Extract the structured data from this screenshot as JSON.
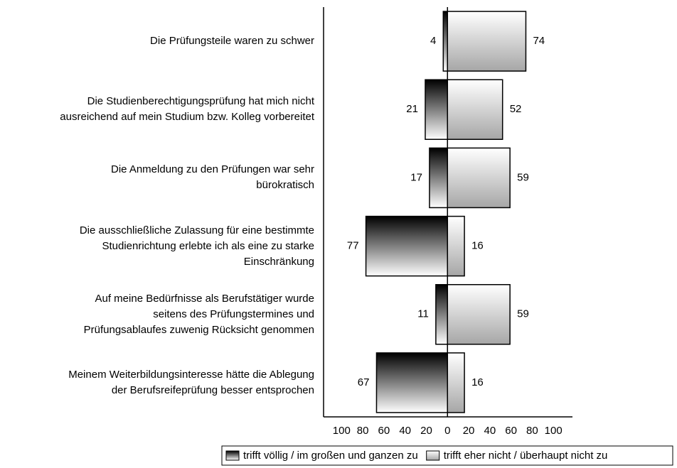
{
  "chart_data": {
    "type": "diverging-bar",
    "categories": [
      "Die Prüfungsteile waren zu schwer",
      "Die Studienberechtigungsprüfung hat mich nicht\nausreichend auf mein Studium bzw. Kolleg vorbereitet",
      "Die Anmeldung zu den Prüfungen war sehr\nbürokratisch",
      "Die ausschließliche Zulassung für eine bestimmte\nStudienrichtung erlebte ich als eine zu starke\nEinschränkung",
      "Auf meine Bedürfnisse als Berufstätiger wurde\nseitens des Prüfungstermines und\nPrüfungsablaufes zuwenig Rücksicht genommen",
      "Meinem Weiterbildungsinteresse hätte die Ablegung\nder Berufsreifeprüfung besser entsprochen"
    ],
    "series": [
      {
        "name": "trifft völlig / im großen und ganzen zu",
        "color": "#000000",
        "values": [
          -4,
          -21,
          -17,
          -77,
          -11,
          -67
        ],
        "value_labels": [
          "4",
          "21",
          "17",
          "77",
          "11",
          "67"
        ]
      },
      {
        "name": "trifft eher nicht / überhaupt nicht zu",
        "color": "#a6a6a6",
        "values": [
          74,
          52,
          59,
          16,
          59,
          16
        ]
      }
    ],
    "xlim": [
      -117,
      118
    ],
    "xticks": [
      {
        "value": -100,
        "label": "100"
      },
      {
        "value": -80,
        "label": "80"
      },
      {
        "value": -60,
        "label": "60"
      },
      {
        "value": -40,
        "label": "40"
      },
      {
        "value": -20,
        "label": "20"
      },
      0,
      20,
      40,
      60,
      80,
      100
    ],
    "legend": "bottom"
  }
}
